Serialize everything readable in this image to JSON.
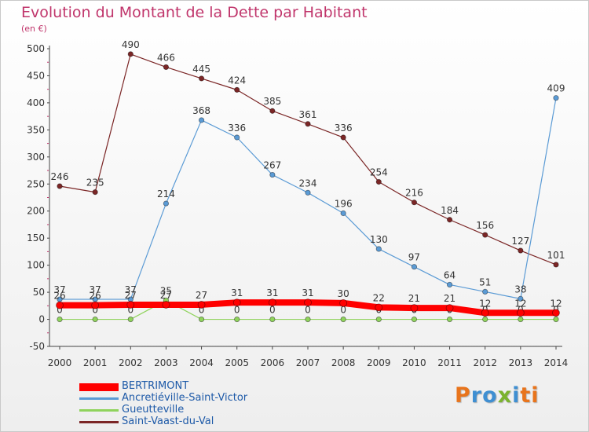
{
  "title": "Evolution du Montant de la Dette par Habitant",
  "subtitle": "(en €)",
  "logo_text": "Proxiti",
  "logo_colors": [
    "#e8741c",
    "#3f8fd2",
    "#3f8fd2",
    "#7bb32e",
    "#3f8fd2",
    "#e8741c",
    "#e8741c"
  ],
  "chart_data": {
    "type": "line",
    "x": [
      2000,
      2001,
      2002,
      2003,
      2004,
      2005,
      2006,
      2007,
      2008,
      2009,
      2010,
      2011,
      2012,
      2013,
      2014
    ],
    "ylim": [
      -50,
      500
    ],
    "yticks": [
      -50,
      0,
      50,
      100,
      150,
      200,
      250,
      300,
      350,
      400,
      450,
      500
    ],
    "grid": false,
    "legend_position": "bottom-left",
    "series": [
      {
        "name": "Saint-Vaast-du-Val",
        "color": "#7b2626",
        "values": [
          246,
          235,
          490,
          466,
          445,
          424,
          385,
          361,
          336,
          254,
          216,
          184,
          156,
          127,
          101
        ]
      },
      {
        "name": "Ancretiéville-Saint-Victor",
        "color": "#5b9bd5",
        "values": [
          37,
          37,
          37,
          214,
          368,
          336,
          267,
          234,
          196,
          130,
          97,
          64,
          51,
          38,
          409
        ]
      },
      {
        "name": "Gueutteville",
        "color": "#8fd35c",
        "values": [
          0,
          0,
          0,
          35,
          0,
          0,
          0,
          0,
          0,
          0,
          0,
          0,
          0,
          0,
          0
        ]
      },
      {
        "name": "BERTRIMONT",
        "color": "#ff0000",
        "values": [
          26,
          26,
          27,
          27,
          27,
          31,
          31,
          31,
          30,
          22,
          21,
          21,
          12,
          12,
          12
        ]
      }
    ],
    "legend_order": [
      "BERTRIMONT",
      "Ancretiéville-Saint-Victor",
      "Gueutteville",
      "Saint-Vaast-du-Val"
    ]
  }
}
